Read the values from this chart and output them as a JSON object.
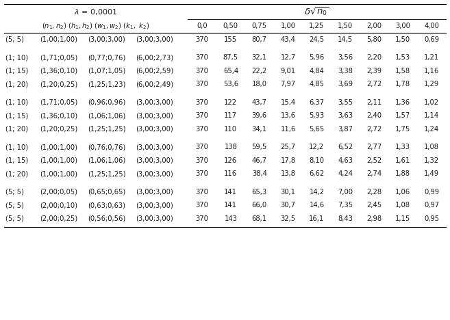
{
  "col_headers": [
    "0,0",
    "0,50",
    "0,75",
    "1,00",
    "1,25",
    "1,50",
    "2,00",
    "3,00",
    "4,00"
  ],
  "rows": [
    {
      "n": "(5; 5)",
      "h": "(1,00;1,00)",
      "w": "(3,00;3,00)",
      "k": "(3,00;3,00)",
      "vals": [
        "370",
        "155",
        "80,7",
        "43,4",
        "24,5",
        "14,5",
        "5,80",
        "1,50",
        "0,69"
      ],
      "gap_before": false
    },
    {
      "n": "",
      "h": "",
      "w": "",
      "k": "",
      "vals": [
        "",
        "",
        "",
        "",
        "",
        "",
        "",
        "",
        ""
      ],
      "gap_before": false
    },
    {
      "n": "(1; 10)",
      "h": "(1,71;0,05)",
      "w": "(0,77;0,76)",
      "k": "(6,00;2,73)",
      "vals": [
        "370",
        "87,5",
        "32,1",
        "12,7",
        "5,96",
        "3,56",
        "2,20",
        "1,53",
        "1,21"
      ],
      "gap_before": false
    },
    {
      "n": "(1; 15)",
      "h": "(1,36;0,10)",
      "w": "(1,07;1,05)",
      "k": "(6,00;2,59)",
      "vals": [
        "370",
        "65,4",
        "22,2",
        "9,01",
        "4,84",
        "3,38",
        "2,39",
        "1,58",
        "1,16"
      ],
      "gap_before": false
    },
    {
      "n": "(1; 20)",
      "h": "(1,20;0,25)",
      "w": "(1,25;1,23)",
      "k": "(6,00;2,49)",
      "vals": [
        "370",
        "53,6",
        "18,0",
        "7,97",
        "4,85",
        "3,69",
        "2,72",
        "1,78",
        "1,29"
      ],
      "gap_before": false
    },
    {
      "n": "",
      "h": "",
      "w": "",
      "k": "",
      "vals": [
        "",
        "",
        "",
        "",
        "",
        "",
        "",
        "",
        ""
      ],
      "gap_before": false
    },
    {
      "n": "(1; 10)",
      "h": "(1,71;0,05)",
      "w": "(0,96;0,96)",
      "k": "(3,00;3,00)",
      "vals": [
        "370",
        "122",
        "43,7",
        "15,4",
        "6,37",
        "3,55",
        "2,11",
        "1,36",
        "1,02"
      ],
      "gap_before": false
    },
    {
      "n": "(1; 15)",
      "h": "(1,36;0,10)",
      "w": "(1,06;1,06)",
      "k": "(3,00;3,00)",
      "vals": [
        "370",
        "117",
        "39,6",
        "13,6",
        "5,93",
        "3,63",
        "2,40",
        "1,57",
        "1,14"
      ],
      "gap_before": false
    },
    {
      "n": "(1; 20)",
      "h": "(1,20;0,25)",
      "w": "(1,25;1,25)",
      "k": "(3,00;3,00)",
      "vals": [
        "370",
        "110",
        "34,1",
        "11,6",
        "5,65",
        "3,87",
        "2,72",
        "1,75",
        "1,24"
      ],
      "gap_before": false
    },
    {
      "n": "",
      "h": "",
      "w": "",
      "k": "",
      "vals": [
        "",
        "",
        "",
        "",
        "",
        "",
        "",
        "",
        ""
      ],
      "gap_before": false
    },
    {
      "n": "(1; 10)",
      "h": "(1,00;1,00)",
      "w": "(0,76;0,76)",
      "k": "(3,00;3,00)",
      "vals": [
        "370",
        "138",
        "59,5",
        "25,7",
        "12,2",
        "6,52",
        "2,77",
        "1,33",
        "1,08"
      ],
      "gap_before": false
    },
    {
      "n": "(1; 15)",
      "h": "(1,00;1,00)",
      "w": "(1,06;1,06)",
      "k": "(3,00;3,00)",
      "vals": [
        "370",
        "126",
        "46,7",
        "17,8",
        "8,10",
        "4,63",
        "2,52",
        "1,61",
        "1,32"
      ],
      "gap_before": false
    },
    {
      "n": "(1; 20)",
      "h": "(1,00;1,00)",
      "w": "(1,25;1,25)",
      "k": "(3,00;3,00)",
      "vals": [
        "370",
        "116",
        "38,4",
        "13,8",
        "6,62",
        "4,24",
        "2,74",
        "1,88",
        "1,49"
      ],
      "gap_before": false
    },
    {
      "n": "",
      "h": "",
      "w": "",
      "k": "",
      "vals": [
        "",
        "",
        "",
        "",
        "",
        "",
        "",
        "",
        ""
      ],
      "gap_before": false
    },
    {
      "n": "(5; 5)",
      "h": "(2,00;0,05)",
      "w": "(0,65;0,65)",
      "k": "(3,00;3,00)",
      "vals": [
        "370",
        "141",
        "65,3",
        "30,1",
        "14,2",
        "7,00",
        "2,28",
        "1,06",
        "0,99"
      ],
      "gap_before": false
    },
    {
      "n": "(5; 5)",
      "h": "(2,00;0,10)",
      "w": "(0,63;0,63)",
      "k": "(3,00;3,00)",
      "vals": [
        "370",
        "141",
        "66,0",
        "30,7",
        "14,6",
        "7,35",
        "2,45",
        "1,08",
        "0,97"
      ],
      "gap_before": false
    },
    {
      "n": "(5; 5)",
      "h": "(2,00;0,25)",
      "w": "(0,56;0,56)",
      "k": "(3,00;3,00)",
      "vals": [
        "370",
        "143",
        "68,1",
        "32,5",
        "16,1",
        "8,43",
        "2,98",
        "1,15",
        "0,95"
      ],
      "gap_before": false
    }
  ],
  "bg_color": "#ffffff",
  "text_color": "#1a1a1a",
  "font_size": 7.2,
  "header_font_size": 8.0
}
